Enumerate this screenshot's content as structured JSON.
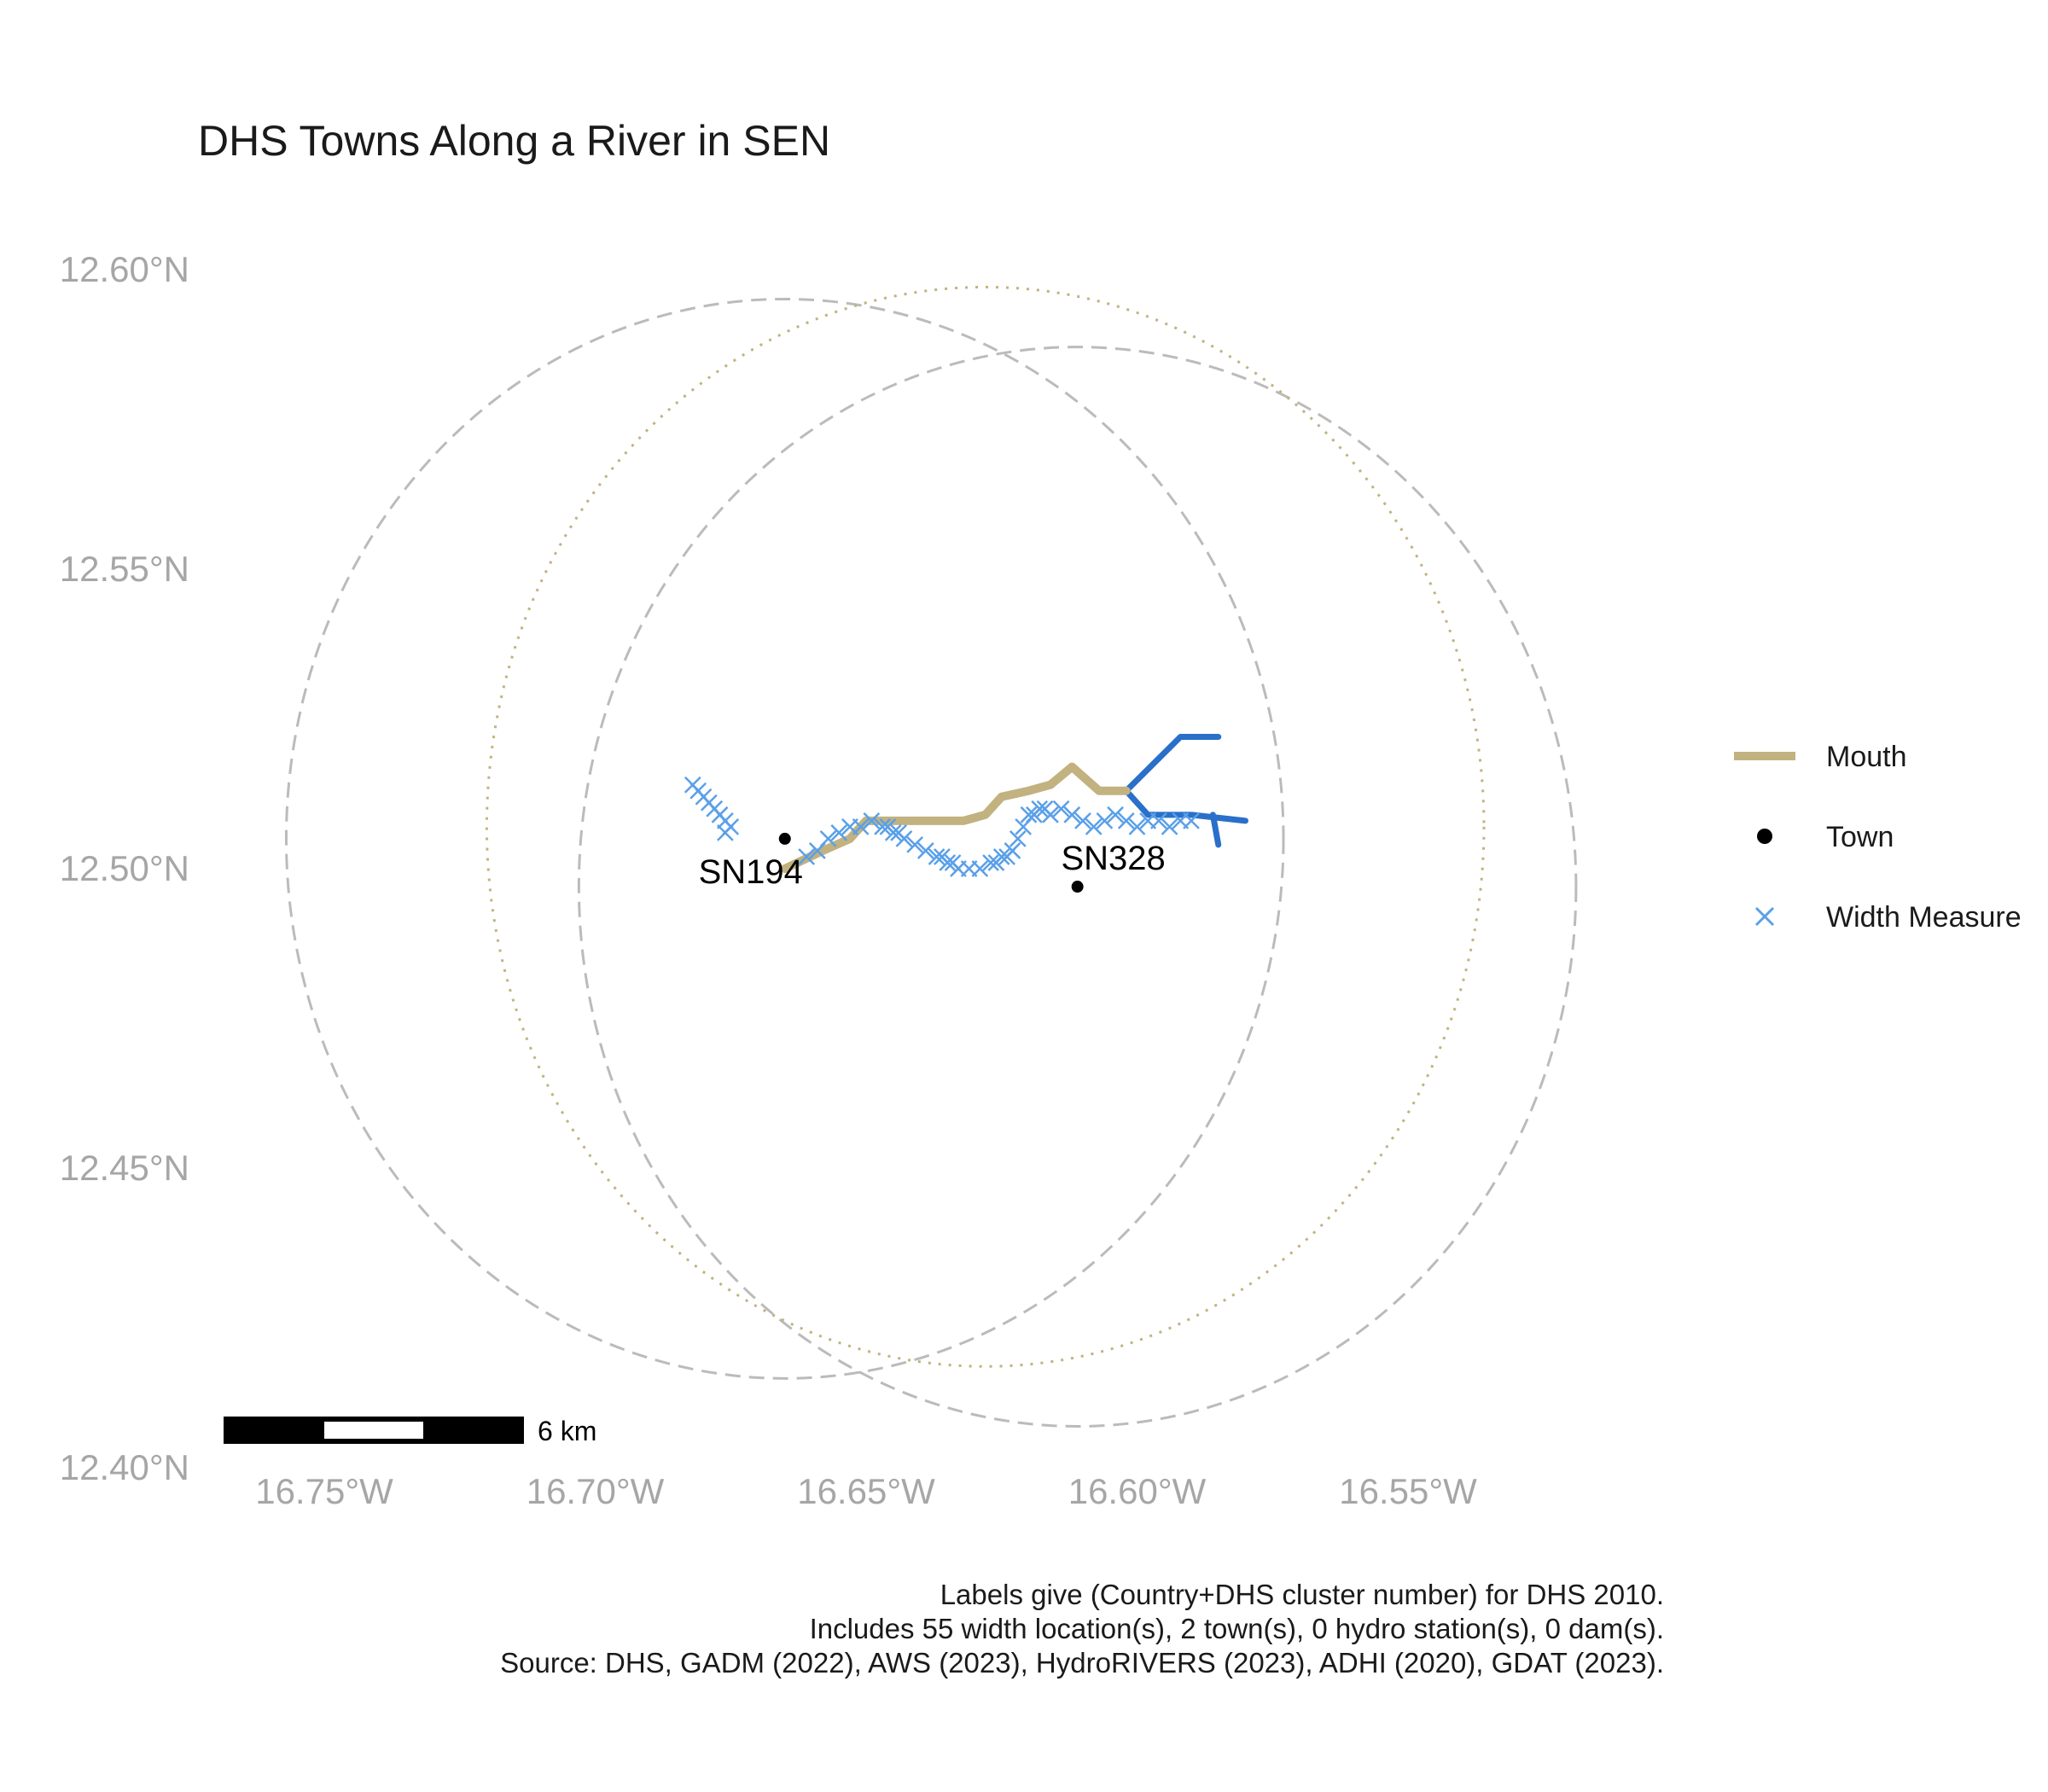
{
  "title": "DHS Towns Along a River in SEN",
  "axes": {
    "x_ticks": [
      {
        "value": -16.75,
        "label": "16.75°W"
      },
      {
        "value": -16.7,
        "label": "16.70°W"
      },
      {
        "value": -16.65,
        "label": "16.65°W"
      },
      {
        "value": -16.6,
        "label": "16.60°W"
      },
      {
        "value": -16.55,
        "label": "16.55°W"
      }
    ],
    "y_ticks": [
      {
        "value": 12.6,
        "label": "12.60°N"
      },
      {
        "value": 12.55,
        "label": "12.55°N"
      },
      {
        "value": 12.5,
        "label": "12.50°N"
      },
      {
        "value": 12.45,
        "label": "12.45°N"
      },
      {
        "value": 12.4,
        "label": "12.40°N"
      }
    ]
  },
  "legend": {
    "mouth": "Mouth",
    "town": "Town",
    "width_measure": "Width Measure"
  },
  "scale_bar": {
    "label": "6 km"
  },
  "colors": {
    "mouth": "#c2b280",
    "river": "#2a6fca",
    "width_measure": "#5aa0e8",
    "circle": "#bbbbbb",
    "town": "#000000"
  },
  "towns": [
    {
      "name": "SN194",
      "lon": -16.665,
      "lat": 12.505
    },
    {
      "name": "SN328",
      "lon": -16.611,
      "lat": 12.497
    }
  ],
  "mouth_path": [
    [
      -16.665,
      12.5
    ],
    [
      -16.658,
      12.503
    ],
    [
      -16.653,
      12.505
    ],
    [
      -16.65,
      12.508
    ],
    [
      -16.64,
      12.508
    ],
    [
      -16.632,
      12.508
    ],
    [
      -16.628,
      12.509
    ],
    [
      -16.625,
      12.512
    ],
    [
      -16.62,
      12.513
    ],
    [
      -16.616,
      12.514
    ],
    [
      -16.612,
      12.517
    ],
    [
      -16.607,
      12.513
    ],
    [
      -16.602,
      12.513
    ]
  ],
  "river_paths": [
    [
      [
        -16.602,
        12.513
      ],
      [
        -16.592,
        12.522
      ],
      [
        -16.585,
        12.522
      ]
    ],
    [
      [
        -16.602,
        12.513
      ],
      [
        -16.598,
        12.509
      ],
      [
        -16.59,
        12.509
      ],
      [
        -16.58,
        12.508
      ]
    ],
    [
      [
        -16.586,
        12.509
      ],
      [
        -16.585,
        12.504
      ]
    ]
  ],
  "width_measures": [
    [
      -16.682,
      12.514
    ],
    [
      -16.681,
      12.513
    ],
    [
      -16.68,
      12.512
    ],
    [
      -16.679,
      12.511
    ],
    [
      -16.678,
      12.51
    ],
    [
      -16.677,
      12.509
    ],
    [
      -16.676,
      12.508
    ],
    [
      -16.675,
      12.507
    ],
    [
      -16.676,
      12.506
    ],
    [
      -16.661,
      12.502
    ],
    [
      -16.659,
      12.503
    ],
    [
      -16.657,
      12.505
    ],
    [
      -16.655,
      12.506
    ],
    [
      -16.653,
      12.507
    ],
    [
      -16.651,
      12.507
    ],
    [
      -16.649,
      12.508
    ],
    [
      -16.647,
      12.507
    ],
    [
      -16.645,
      12.506
    ],
    [
      -16.643,
      12.505
    ],
    [
      -16.641,
      12.504
    ],
    [
      -16.639,
      12.503
    ],
    [
      -16.637,
      12.502
    ],
    [
      -16.635,
      12.501
    ],
    [
      -16.633,
      12.5
    ],
    [
      -16.631,
      12.5
    ],
    [
      -16.629,
      12.5
    ],
    [
      -16.627,
      12.501
    ],
    [
      -16.625,
      12.502
    ],
    [
      -16.623,
      12.503
    ],
    [
      -16.622,
      12.505
    ],
    [
      -16.621,
      12.507
    ],
    [
      -16.62,
      12.509
    ],
    [
      -16.618,
      12.51
    ],
    [
      -16.616,
      12.509
    ],
    [
      -16.614,
      12.51
    ],
    [
      -16.612,
      12.509
    ],
    [
      -16.61,
      12.508
    ],
    [
      -16.608,
      12.507
    ],
    [
      -16.606,
      12.508
    ],
    [
      -16.604,
      12.509
    ],
    [
      -16.602,
      12.508
    ],
    [
      -16.6,
      12.507
    ],
    [
      -16.598,
      12.508
    ],
    [
      -16.596,
      12.508
    ],
    [
      -16.594,
      12.507
    ],
    [
      -16.592,
      12.508
    ],
    [
      -16.59,
      12.508
    ],
    [
      -16.634,
      12.501
    ],
    [
      -16.636,
      12.502
    ],
    [
      -16.644,
      12.506
    ],
    [
      -16.646,
      12.507
    ],
    [
      -16.624,
      12.502
    ],
    [
      -16.626,
      12.501
    ],
    [
      -16.619,
      12.509
    ],
    [
      -16.617,
      12.51
    ]
  ],
  "circles": [
    {
      "lon": -16.665,
      "lat": 12.505,
      "style": "dashed",
      "r_km": 10
    },
    {
      "lon": -16.611,
      "lat": 12.497,
      "style": "dashed",
      "r_km": 10
    },
    {
      "lon": -16.628,
      "lat": 12.507,
      "style": "dotted",
      "r_km": 10
    }
  ],
  "caption": [
    "Labels give (Country+DHS cluster number) for DHS 2010.",
    "Includes 55 width location(s), 2 town(s), 0 hydro station(s), 0 dam(s).",
    "Source: DHS, GADM (2022), AWS (2023), HydroRIVERS (2023), ADHI (2020), GDAT (2023)."
  ]
}
